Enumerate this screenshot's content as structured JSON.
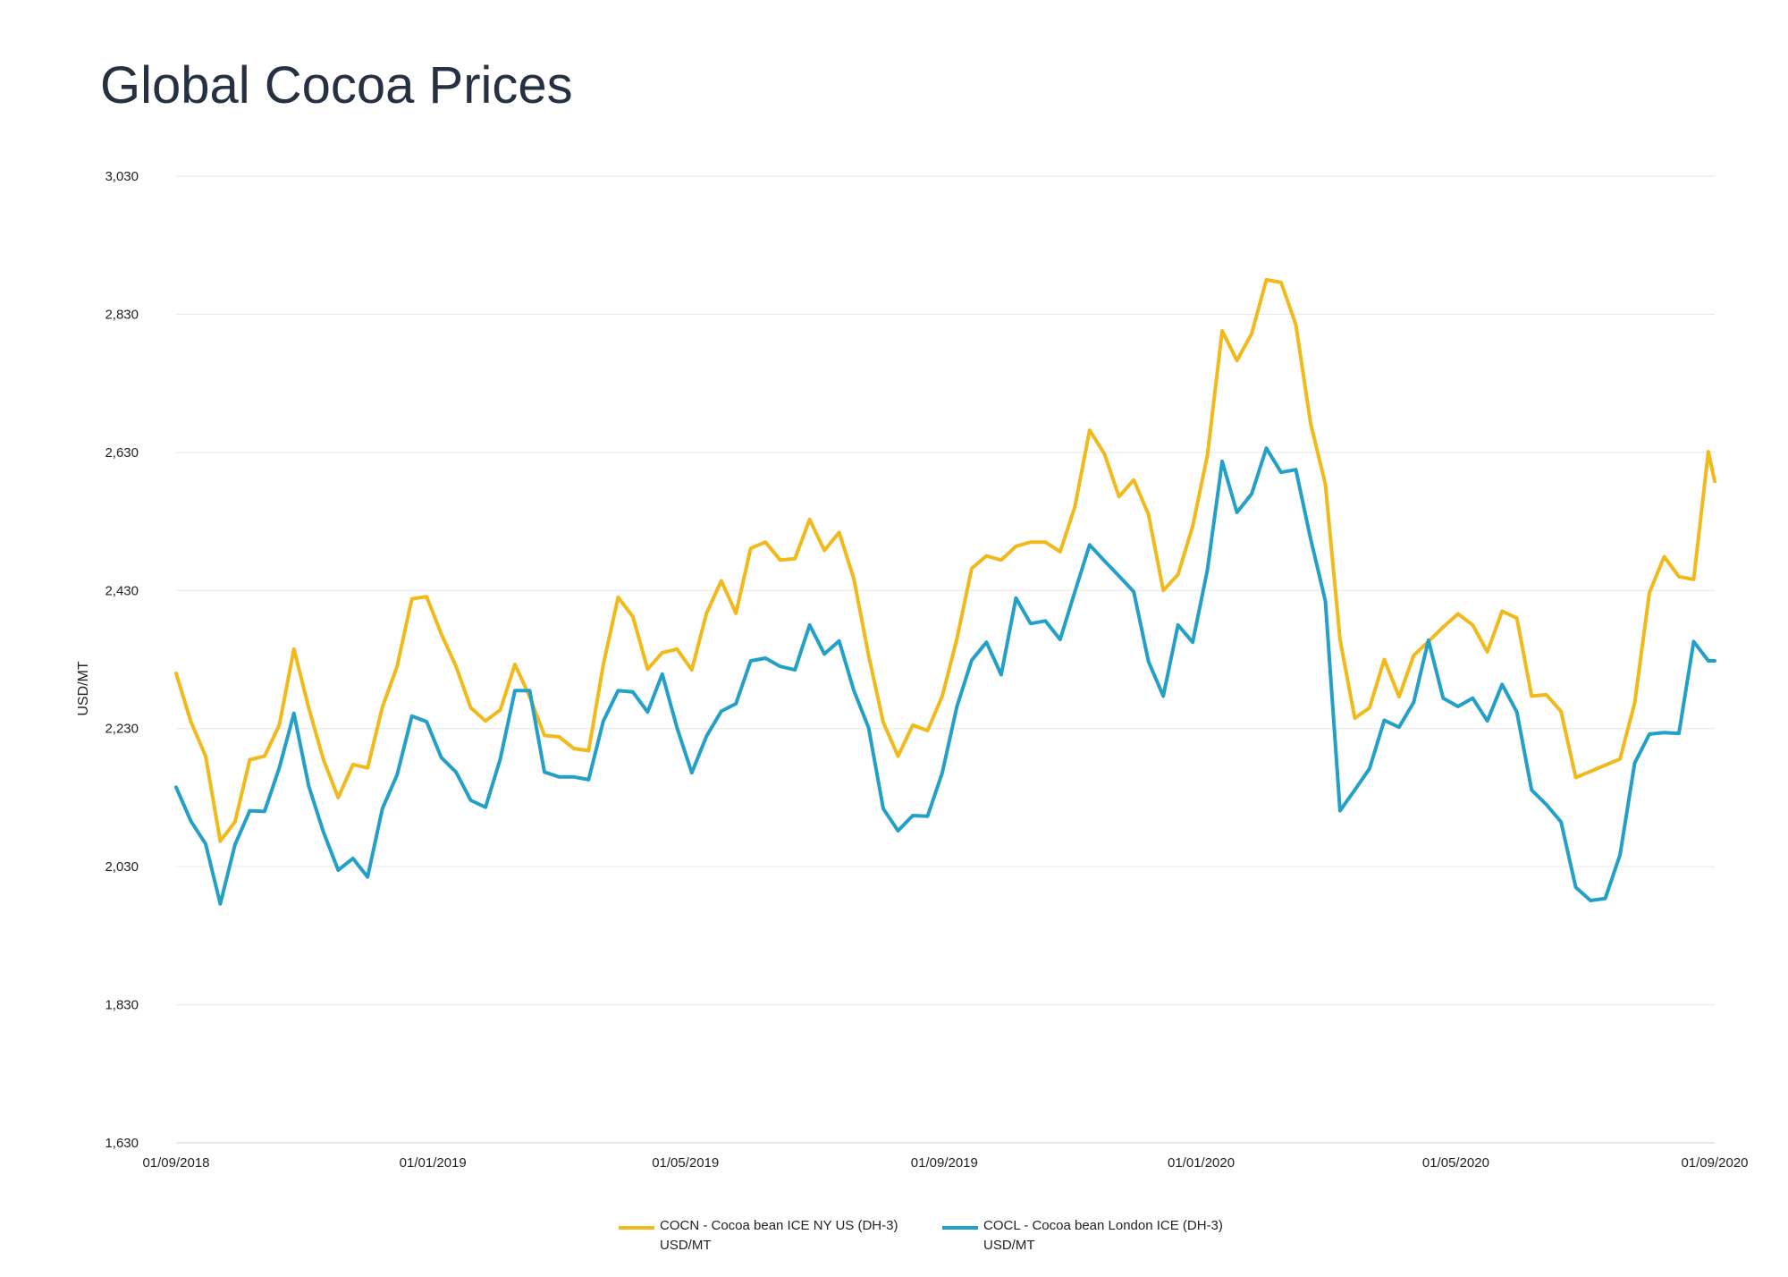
{
  "title": "Global Cocoa Prices",
  "chart_data": {
    "type": "line",
    "title": "Global Cocoa Prices",
    "ylabel": "USD/MT",
    "xlabel": "",
    "ylim": [
      1630,
      3030
    ],
    "yticks": [
      1630,
      1830,
      2030,
      2230,
      2430,
      2630,
      2830,
      3030
    ],
    "ytick_labels": [
      "1,630",
      "1,830",
      "2,030",
      "2,230",
      "2,430",
      "2,630",
      "2,830",
      "3,030"
    ],
    "xticks": [
      "01/09/2018",
      "01/01/2019",
      "01/05/2019",
      "01/09/2019",
      "01/01/2020",
      "01/05/2020",
      "01/09/2020"
    ],
    "xlim": [
      "2018-09-01",
      "2020-09-01"
    ],
    "grid": "horizontal",
    "legend_position": "bottom-center",
    "x": [
      "2018-09-01",
      "2018-09-08",
      "2018-09-15",
      "2018-09-22",
      "2018-09-29",
      "2018-10-06",
      "2018-10-13",
      "2018-10-20",
      "2018-10-27",
      "2018-11-03",
      "2018-11-10",
      "2018-11-17",
      "2018-11-24",
      "2018-12-01",
      "2018-12-08",
      "2018-12-15",
      "2018-12-22",
      "2018-12-29",
      "2019-01-05",
      "2019-01-12",
      "2019-01-19",
      "2019-01-26",
      "2019-02-02",
      "2019-02-09",
      "2019-02-16",
      "2019-02-23",
      "2019-03-02",
      "2019-03-09",
      "2019-03-16",
      "2019-03-23",
      "2019-03-30",
      "2019-04-06",
      "2019-04-13",
      "2019-04-20",
      "2019-04-27",
      "2019-05-04",
      "2019-05-11",
      "2019-05-18",
      "2019-05-25",
      "2019-06-01",
      "2019-06-08",
      "2019-06-15",
      "2019-06-22",
      "2019-06-29",
      "2019-07-06",
      "2019-07-13",
      "2019-07-20",
      "2019-07-27",
      "2019-08-03",
      "2019-08-10",
      "2019-08-17",
      "2019-08-24",
      "2019-08-31",
      "2019-09-07",
      "2019-09-14",
      "2019-09-21",
      "2019-09-28",
      "2019-10-05",
      "2019-10-12",
      "2019-10-19",
      "2019-10-26",
      "2019-11-02",
      "2019-11-09",
      "2019-11-16",
      "2019-11-23",
      "2019-11-30",
      "2019-12-07",
      "2019-12-14",
      "2019-12-21",
      "2019-12-28",
      "2020-01-04",
      "2020-01-11",
      "2020-01-18",
      "2020-01-25",
      "2020-02-01",
      "2020-02-08",
      "2020-02-15",
      "2020-02-22",
      "2020-02-29",
      "2020-03-07",
      "2020-03-14",
      "2020-03-21",
      "2020-03-28",
      "2020-04-04",
      "2020-04-11",
      "2020-04-18",
      "2020-04-25",
      "2020-05-02",
      "2020-05-09",
      "2020-05-16",
      "2020-05-23",
      "2020-05-30",
      "2020-06-06",
      "2020-06-13",
      "2020-06-20",
      "2020-06-27",
      "2020-07-04",
      "2020-07-11",
      "2020-07-18",
      "2020-07-25",
      "2020-08-01",
      "2020-08-08",
      "2020-08-15",
      "2020-08-22",
      "2020-08-29",
      "2020-09-01"
    ],
    "series": [
      {
        "name": "COCN - Cocoa bean ICE NY US (DH-3)",
        "unit": "USD/MT",
        "color": "#F2B91A",
        "values": [
          2310,
          2240,
          2190,
          2067,
          2095,
          2185,
          2190,
          2235,
          2345,
          2260,
          2185,
          2130,
          2178,
          2173,
          2261,
          2320,
          2418,
          2421,
          2367,
          2320,
          2260,
          2241,
          2257,
          2323,
          2276,
          2220,
          2218,
          2201,
          2198,
          2323,
          2420,
          2392,
          2316,
          2340,
          2345,
          2315,
          2397,
          2444,
          2397,
          2491,
          2500,
          2474,
          2476,
          2533,
          2488,
          2514,
          2447,
          2336,
          2239,
          2190,
          2235,
          2227,
          2277,
          2360,
          2462,
          2480,
          2474,
          2494,
          2500,
          2500,
          2486,
          2551,
          2662,
          2628,
          2566,
          2590,
          2540,
          2430,
          2453,
          2523,
          2626,
          2806,
          2763,
          2802,
          2880,
          2876,
          2815,
          2672,
          2584,
          2359,
          2245,
          2260,
          2330,
          2276,
          2336,
          2356,
          2377,
          2396,
          2380,
          2341,
          2400,
          2390,
          2277,
          2279,
          2255,
          2159,
          2168,
          2177,
          2186,
          2267,
          2427,
          2479,
          2450,
          2446,
          2631,
          2588
        ]
      },
      {
        "name": "COCL - Cocoa bean London ICE (DH-3)",
        "unit": "USD/MT",
        "color": "#23A0C8",
        "values": [
          2145,
          2096,
          2063,
          1976,
          2062,
          2111,
          2110,
          2173,
          2252,
          2147,
          2080,
          2025,
          2042,
          2015,
          2114,
          2163,
          2248,
          2240,
          2188,
          2167,
          2126,
          2116,
          2186,
          2285,
          2285,
          2167,
          2160,
          2160,
          2156,
          2241,
          2285,
          2283,
          2254,
          2309,
          2231,
          2166,
          2219,
          2255,
          2266,
          2328,
          2332,
          2320,
          2315,
          2380,
          2338,
          2357,
          2285,
          2231,
          2114,
          2082,
          2104,
          2103,
          2166,
          2262,
          2329,
          2355,
          2308,
          2419,
          2382,
          2386,
          2359,
          2428,
          2496,
          2473,
          2451,
          2428,
          2327,
          2277,
          2380,
          2355,
          2460,
          2617,
          2543,
          2570,
          2636,
          2601,
          2605,
          2505,
          2415,
          2111,
          2141,
          2172,
          2242,
          2232,
          2268,
          2358,
          2274,
          2262,
          2274,
          2241,
          2294,
          2254,
          2141,
          2120,
          2095,
          2000,
          1981,
          1984,
          2047,
          2180,
          2222,
          2224,
          2223,
          2356,
          2328,
          2328
        ]
      }
    ]
  },
  "legend": [
    {
      "label": "COCN - Cocoa bean ICE NY US (DH-3)",
      "unit": "USD/MT",
      "color": "#F2B91A"
    },
    {
      "label": "COCL - Cocoa bean London ICE (DH-3)",
      "unit": "USD/MT",
      "color": "#23A0C8"
    }
  ]
}
